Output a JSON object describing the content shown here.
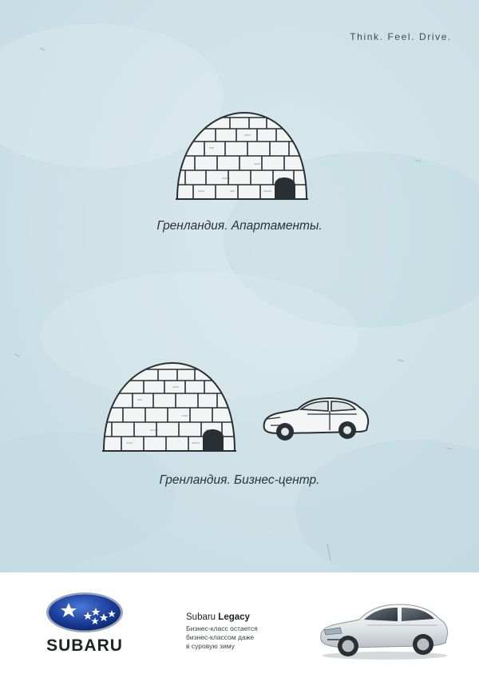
{
  "poster": {
    "tagline": "Think. Feel. Drive.",
    "caption_apartments": "Гренландия. Апартаменты.",
    "caption_business_center": "Гренландия. Бизнес-центр."
  },
  "footer": {
    "brand": "SUBARU",
    "model_prefix": "Subaru",
    "model_name": "Legacy",
    "slogan_lines": [
      "Бизнес-класс остается",
      "бизнес-классом даже",
      "в суровую зиму"
    ]
  },
  "colors": {
    "poster_background": "#cfe2e8",
    "logo_blue": "#1b3f9c",
    "ink": "#2b3338"
  },
  "icons": [
    "igloo-sketch",
    "car-sketch",
    "subaru-star-emblem",
    "car-photo"
  ]
}
